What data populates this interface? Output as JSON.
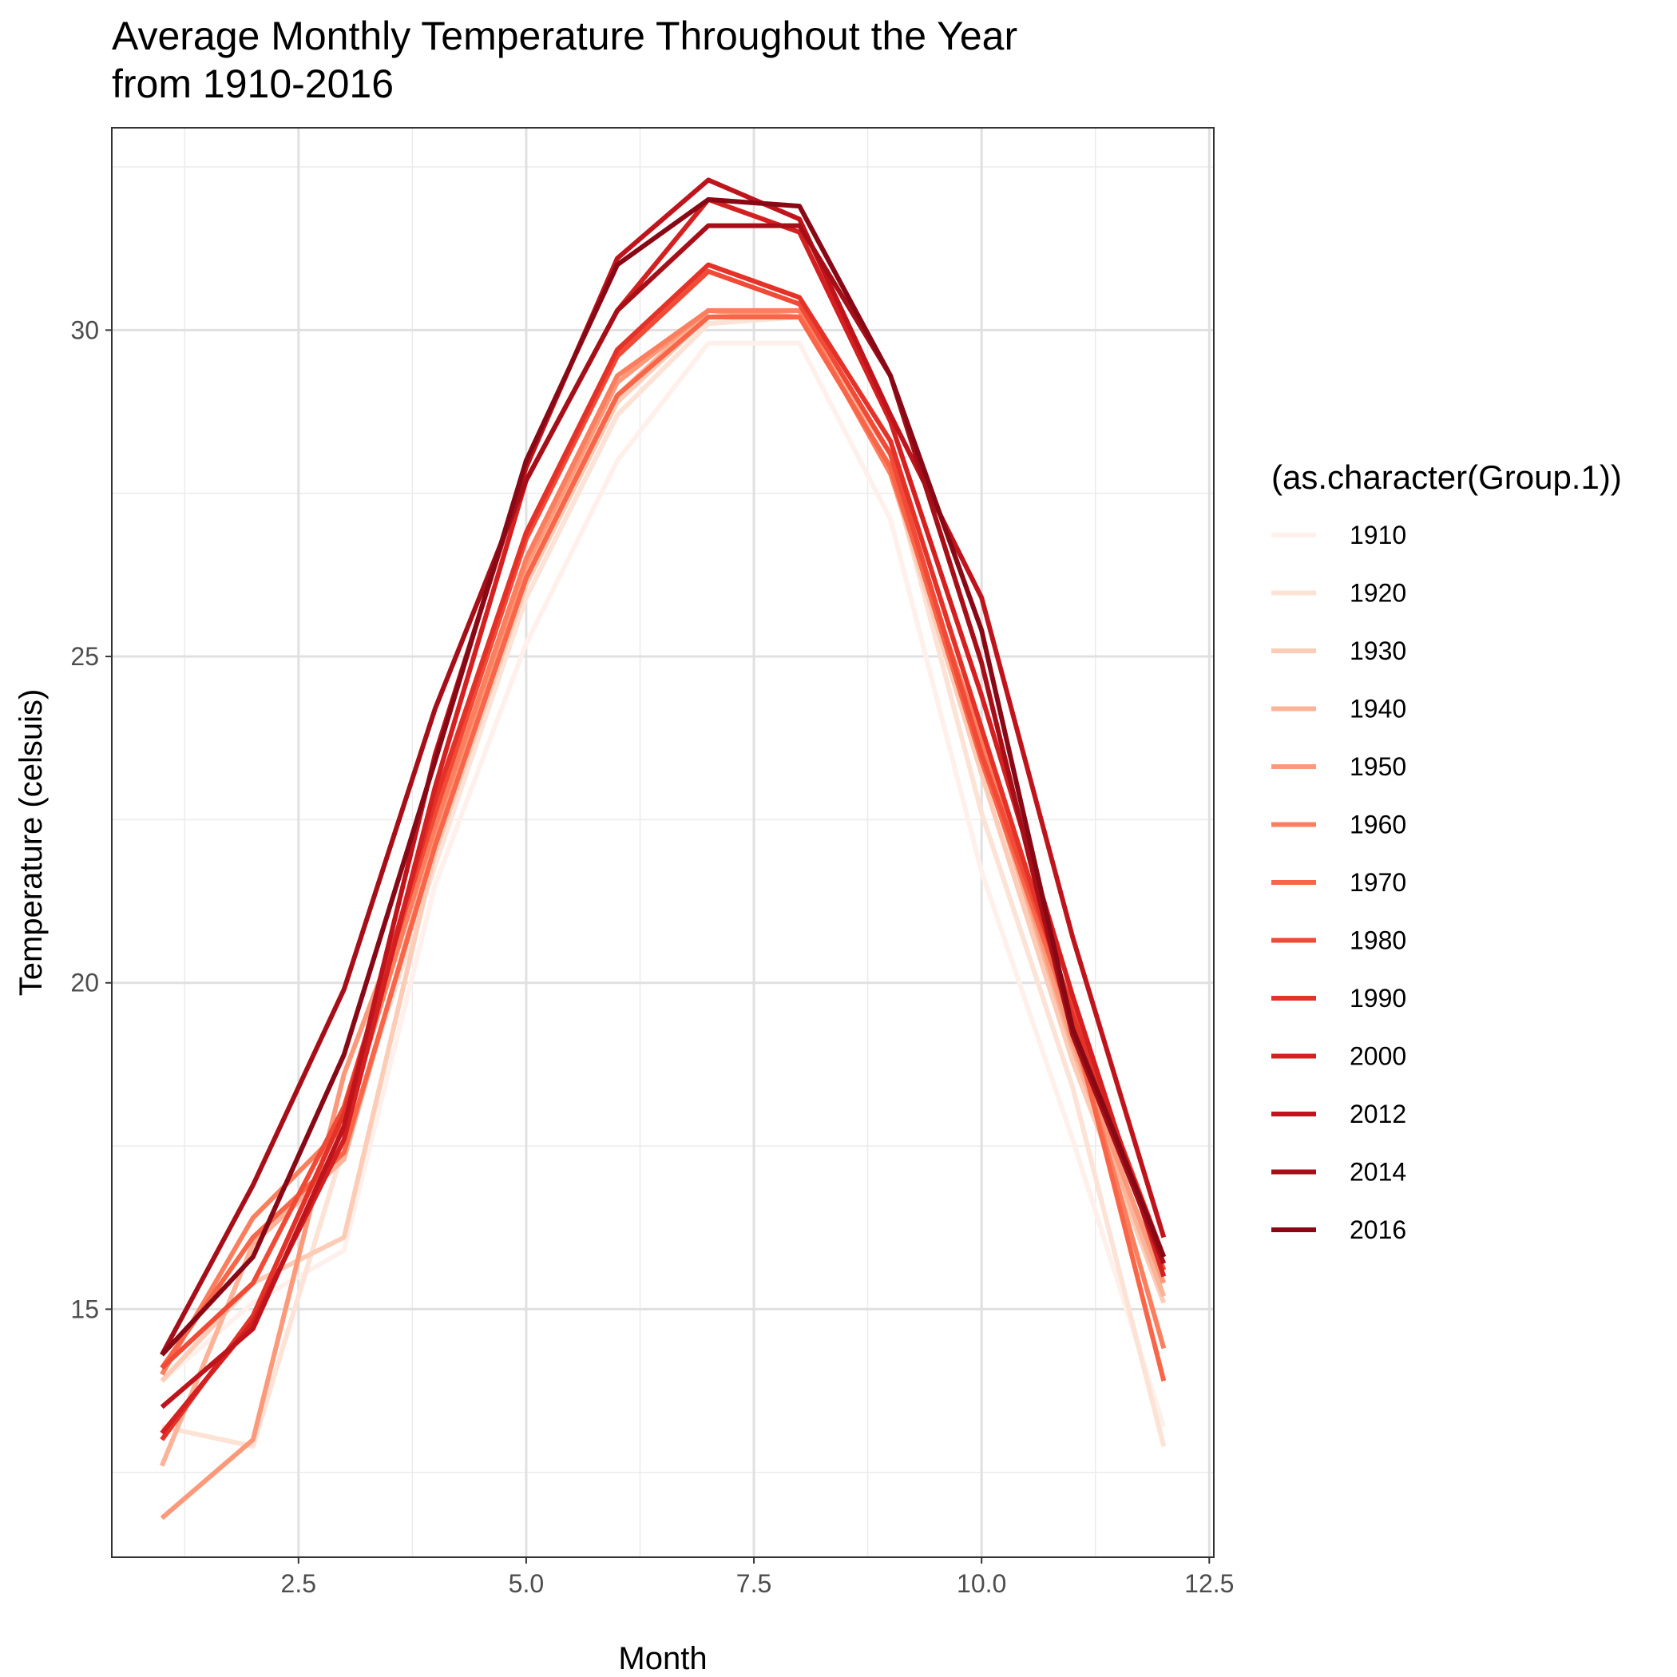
{
  "chart_data": {
    "type": "line",
    "title": [
      "Average Monthly Temperature Throughout the Year",
      "from 1910-2016"
    ],
    "xlabel": "Month",
    "ylabel": "Temperature (celsuis)",
    "xlim": [
      0.45,
      12.55
    ],
    "ylim": [
      11.2,
      33.1
    ],
    "x_ticks": [
      2.5,
      5.0,
      7.5,
      10.0,
      12.5
    ],
    "x_tick_labels": [
      "2.5",
      "5.0",
      "7.5",
      "10.0",
      "12.5"
    ],
    "y_ticks": [
      15,
      20,
      25,
      30
    ],
    "y_tick_labels": [
      "15",
      "20",
      "25",
      "30"
    ],
    "grid": true,
    "legend": {
      "title": "(as.character(Group.1))",
      "position": "right"
    },
    "x": [
      1,
      2,
      3,
      4,
      5,
      6,
      7,
      8,
      9,
      10,
      11,
      12
    ],
    "series": [
      {
        "name": "1910",
        "color": "#fff0eb",
        "values": [
          13.9,
          15.1,
          15.9,
          21.5,
          25.2,
          28.0,
          29.8,
          29.8,
          27.1,
          21.7,
          17.6,
          13.2
        ]
      },
      {
        "name": "1920",
        "color": "#fde2d6",
        "values": [
          13.2,
          12.9,
          17.5,
          21.8,
          25.9,
          28.7,
          30.1,
          30.2,
          27.9,
          22.6,
          18.4,
          12.9
        ]
      },
      {
        "name": "1930",
        "color": "#fcccb7",
        "values": [
          13.9,
          15.4,
          16.1,
          22.0,
          26.1,
          28.9,
          30.2,
          30.3,
          27.8,
          23.2,
          18.8,
          15.1
        ]
      },
      {
        "name": "1940",
        "color": "#fcb398",
        "values": [
          12.6,
          16.0,
          17.3,
          22.2,
          26.3,
          29.0,
          30.3,
          30.2,
          28.1,
          23.5,
          19.0,
          15.2
        ]
      },
      {
        "name": "1950",
        "color": "#fc997a",
        "values": [
          11.8,
          13.0,
          18.6,
          22.3,
          26.4,
          29.2,
          30.3,
          30.2,
          27.9,
          23.6,
          19.1,
          15.4
        ]
      },
      {
        "name": "1960",
        "color": "#fb7f5f",
        "values": [
          14.0,
          16.4,
          17.8,
          22.4,
          26.5,
          29.3,
          30.3,
          30.3,
          27.8,
          23.7,
          19.3,
          14.4
        ]
      },
      {
        "name": "1970",
        "color": "#f96548",
        "values": [
          14.1,
          16.1,
          17.4,
          22.1,
          26.2,
          29.0,
          30.2,
          30.2,
          27.9,
          23.4,
          19.4,
          13.9
        ]
      },
      {
        "name": "1980",
        "color": "#f14a36",
        "values": [
          14.1,
          15.4,
          18.1,
          22.6,
          26.8,
          29.6,
          30.9,
          30.4,
          28.1,
          23.5,
          19.6,
          15.6
        ]
      },
      {
        "name": "1990",
        "color": "#e53228",
        "values": [
          13.0,
          14.9,
          18.0,
          22.8,
          26.9,
          29.7,
          31.0,
          30.5,
          28.3,
          23.9,
          19.5,
          15.8
        ]
      },
      {
        "name": "2000",
        "color": "#d42020",
        "values": [
          13.1,
          14.8,
          17.6,
          23.0,
          27.7,
          30.3,
          32.0,
          31.5,
          28.6,
          24.4,
          19.8,
          15.5
        ]
      },
      {
        "name": "2012",
        "color": "#c0141c",
        "values": [
          13.5,
          14.7,
          17.8,
          23.5,
          27.9,
          31.1,
          32.3,
          31.7,
          28.7,
          25.9,
          20.7,
          16.1
        ]
      },
      {
        "name": "2014",
        "color": "#a70f18",
        "values": [
          14.3,
          16.9,
          19.9,
          24.2,
          27.7,
          30.3,
          31.6,
          31.6,
          29.3,
          24.9,
          19.2,
          15.7
        ]
      },
      {
        "name": "2016",
        "color": "#880915",
        "values": [
          14.3,
          15.8,
          18.9,
          23.4,
          28.0,
          31.0,
          32.0,
          31.9,
          29.3,
          25.4,
          19.3,
          15.8
        ]
      }
    ]
  }
}
